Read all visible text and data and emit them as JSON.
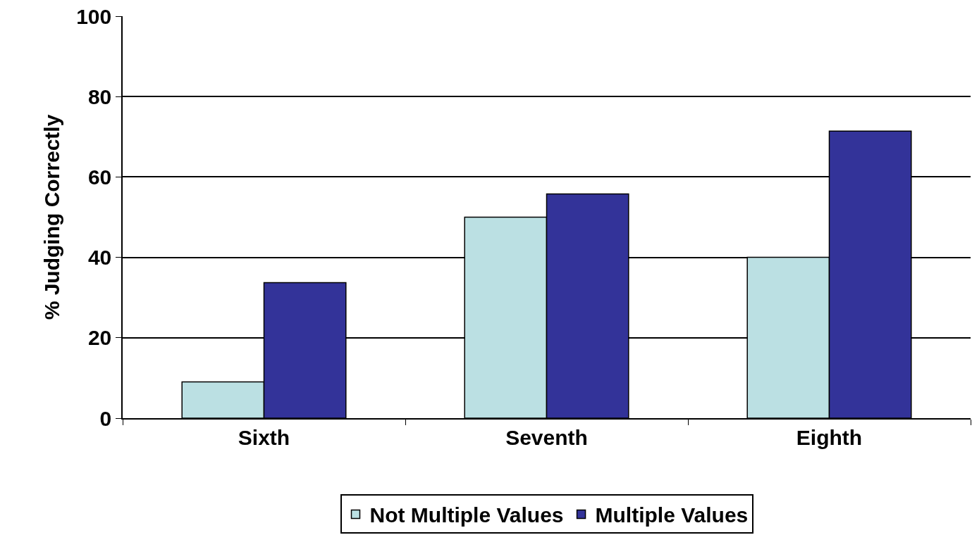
{
  "chart_data": {
    "type": "bar",
    "ylabel": "% Judging Correctly",
    "categories": [
      "Sixth",
      "Seventh",
      "Eighth"
    ],
    "series": [
      {
        "name": "Not Multiple Values",
        "color": "#bbe0e3",
        "values": [
          9,
          50,
          40
        ]
      },
      {
        "name": "Multiple Values",
        "color": "#333399",
        "values": [
          33.7,
          55.8,
          71.4
        ]
      }
    ],
    "ylim": [
      0,
      100
    ],
    "yticks": [
      0,
      20,
      40,
      60,
      80,
      100
    ],
    "grid": "y",
    "legend": "bottom"
  }
}
